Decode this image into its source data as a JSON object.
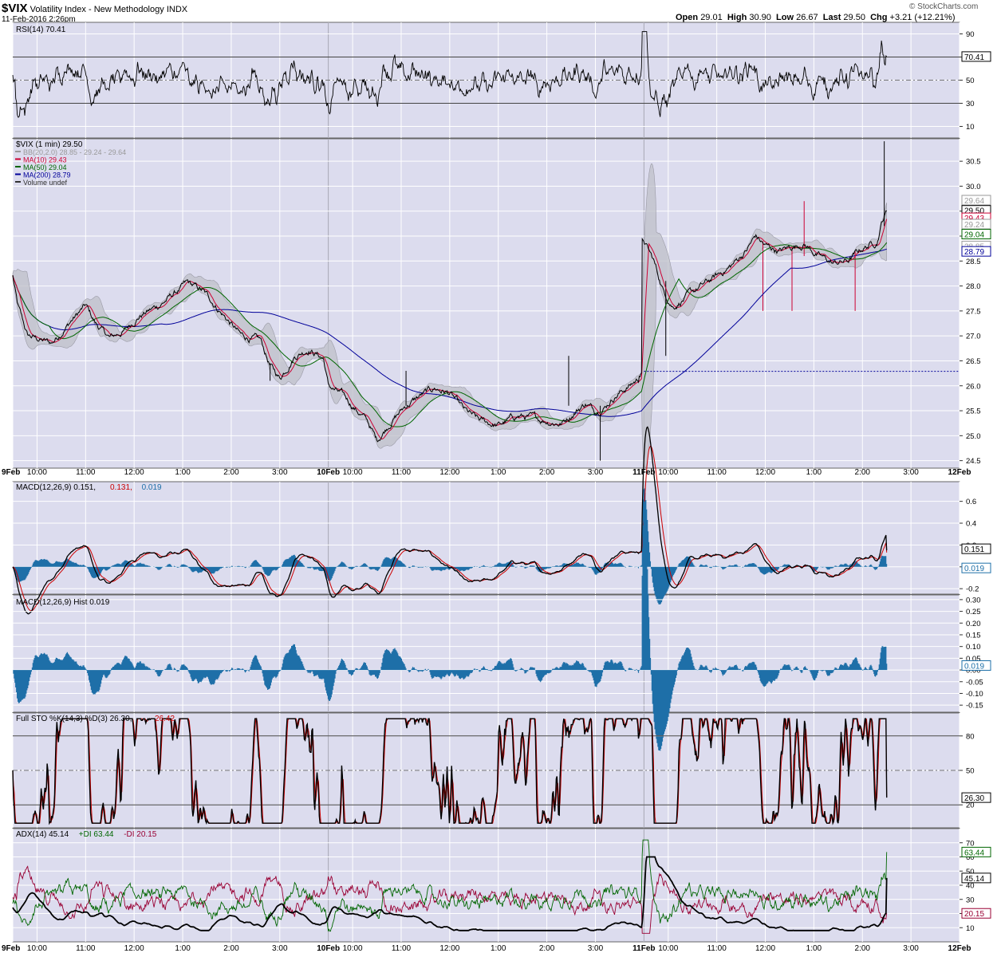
{
  "header": {
    "symbol": "$VIX",
    "name": "Volatility Index - New Methodology",
    "exchange": "INDX",
    "datetime": "11-Feb-2016 2:26pm",
    "open_label": "Open",
    "open": "29.01",
    "high_label": "High",
    "high": "30.90",
    "low_label": "Low",
    "low": "26.67",
    "last_label": "Last",
    "last": "29.50",
    "chg_label": "Chg",
    "chg": "+3.21 (+12.21%)",
    "watermark": "© StockCharts.com"
  },
  "time_axis": {
    "labels": [
      {
        "t": 0,
        "text": "9Feb",
        "bold": true
      },
      {
        "t": 0.5,
        "text": "10:00"
      },
      {
        "t": 1.5,
        "text": "11:00"
      },
      {
        "t": 2.5,
        "text": "12:00"
      },
      {
        "t": 3.5,
        "text": "1:00"
      },
      {
        "t": 4.5,
        "text": "2:00"
      },
      {
        "t": 5.5,
        "text": "3:00"
      },
      {
        "t": 6.5,
        "text": "10Feb",
        "bold": true
      },
      {
        "t": 7.0,
        "text": "10:00"
      },
      {
        "t": 8.0,
        "text": "11:00"
      },
      {
        "t": 9.0,
        "text": "12:00"
      },
      {
        "t": 10.0,
        "text": "1:00"
      },
      {
        "t": 11.0,
        "text": "2:00"
      },
      {
        "t": 12.0,
        "text": "3:00"
      },
      {
        "t": 13.0,
        "text": "11Feb",
        "bold": true
      },
      {
        "t": 13.5,
        "text": "10:00"
      },
      {
        "t": 14.5,
        "text": "11:00"
      },
      {
        "t": 15.5,
        "text": "12:00"
      },
      {
        "t": 16.5,
        "text": "1:00"
      },
      {
        "t": 17.5,
        "text": "2:00"
      },
      {
        "t": 18.5,
        "text": "3:00"
      },
      {
        "t": 19.5,
        "text": "12Feb",
        "bold": true
      }
    ],
    "day_separators": [
      6.5,
      13.0
    ]
  },
  "panels": {
    "rsi": {
      "legend": "RSI(14) 70.41",
      "ticks": [
        "90",
        "70",
        "50",
        "30",
        "10"
      ],
      "badge": "70.41"
    },
    "price": {
      "legend": [
        {
          "text": "$VIX (1 min) 29.50",
          "color": "#000000"
        },
        {
          "text": "BB(20,2.0) 28.85 - 29.24 - 29.64",
          "color": "#999999"
        },
        {
          "text": "MA(10) 29.43",
          "color": "#cc0033"
        },
        {
          "text": "MA(50) 29.04",
          "color": "#006600"
        },
        {
          "text": "MA(200) 28.79",
          "color": "#000099"
        },
        {
          "text": "Volume undef",
          "color": "#333333"
        }
      ],
      "ticks": [
        "30.5",
        "30.0",
        "29.5",
        "29.0",
        "28.5",
        "28.0",
        "27.5",
        "27.0",
        "26.5",
        "26.0",
        "25.5",
        "25.0",
        "24.5"
      ],
      "badges": [
        {
          "text": "29.64",
          "color": "#999999"
        },
        {
          "text": "29.50",
          "color": "#000000"
        },
        {
          "text": "29.43",
          "color": "#cc0033"
        },
        {
          "text": "29.24",
          "color": "#999999"
        },
        {
          "text": "29.04",
          "color": "#006600"
        },
        {
          "text": "28.85",
          "color": "#999999"
        },
        {
          "text": "28.79",
          "color": "#000099"
        }
      ]
    },
    "macd": {
      "legend": [
        {
          "text": "MACD(12,26,9) 0.151,",
          "color": "#000000"
        },
        {
          "text": "0.131,",
          "color": "#cc0000"
        },
        {
          "text": "0.019",
          "color": "#1e6fa8"
        }
      ],
      "ticks": [
        "0.6",
        "0.4",
        "0.2",
        "0.0",
        "-0.2"
      ],
      "badges": [
        "0.151",
        "0.019"
      ]
    },
    "hist": {
      "legend": "MACD(12,26,9) Hist 0.019",
      "ticks": [
        "0.30",
        "0.25",
        "0.20",
        "0.15",
        "0.10",
        "0.05",
        "0.00",
        "-0.05",
        "-0.10",
        "-0.15"
      ],
      "badge": "0.019"
    },
    "sto": {
      "legend": [
        {
          "text": "Full STO %K(14,3) %D(3) 26.30,",
          "color": "#000000"
        },
        {
          "text": "26.42",
          "color": "#cc0000"
        }
      ],
      "ticks": [
        "80",
        "50",
        "20"
      ],
      "badge": "26.30"
    },
    "adx": {
      "legend": [
        {
          "text": "ADX(14) 45.14",
          "color": "#000000"
        },
        {
          "text": "+DI 63.44",
          "color": "#006600"
        },
        {
          "text": "-DI 20.15",
          "color": "#990033"
        }
      ],
      "ticks": [
        "70",
        "60",
        "50",
        "40",
        "30",
        "20",
        "10"
      ],
      "badges": [
        {
          "text": "63.44",
          "color": "#006600"
        },
        {
          "text": "45.14",
          "color": "#000000"
        },
        {
          "text": "20.15",
          "color": "#990033"
        }
      ]
    }
  },
  "colors": {
    "panel_bg": "#dcdcee",
    "grid": "#ffffff",
    "price_line": "#000000",
    "bb_fill": "#bfc0c8",
    "ma10": "#cc0033",
    "ma50": "#006600",
    "ma200": "#000099",
    "hist": "#1e6fa8",
    "rsi_fill": "#555555"
  },
  "chart_data": {
    "type": "line",
    "title": "$VIX Volatility Index - New Methodology INDX",
    "time_unit": "hours since 9Feb 9:30 (6.5 h sessions)",
    "price_anchors": [
      [
        0,
        28.2
      ],
      [
        0.1,
        27.6
      ],
      [
        0.3,
        27.0
      ],
      [
        0.8,
        26.85
      ],
      [
        1.2,
        27.3
      ],
      [
        1.5,
        27.6
      ],
      [
        1.7,
        27.25
      ],
      [
        2.0,
        26.95
      ],
      [
        2.3,
        27.1
      ],
      [
        2.6,
        27.4
      ],
      [
        3.0,
        27.6
      ],
      [
        3.4,
        27.9
      ],
      [
        3.6,
        28.05
      ],
      [
        3.9,
        27.9
      ],
      [
        4.1,
        27.7
      ],
      [
        4.4,
        27.35
      ],
      [
        4.7,
        27.0
      ],
      [
        5.1,
        26.9
      ],
      [
        5.3,
        26.4
      ],
      [
        5.5,
        26.15
      ],
      [
        5.8,
        26.6
      ],
      [
        6.1,
        26.75
      ],
      [
        6.4,
        26.55
      ],
      [
        6.5,
        26.0
      ],
      [
        6.8,
        25.8
      ],
      [
        7.3,
        25.3
      ],
      [
        7.5,
        24.9
      ],
      [
        7.8,
        25.3
      ],
      [
        8.1,
        25.6
      ],
      [
        8.4,
        25.8
      ],
      [
        8.7,
        25.95
      ],
      [
        9.0,
        25.85
      ],
      [
        9.3,
        25.5
      ],
      [
        9.6,
        25.3
      ],
      [
        10.0,
        25.2
      ],
      [
        10.4,
        25.4
      ],
      [
        10.7,
        25.35
      ],
      [
        11.0,
        25.3
      ],
      [
        11.3,
        25.25
      ],
      [
        11.6,
        25.5
      ],
      [
        11.8,
        25.65
      ],
      [
        12.0,
        25.5
      ],
      [
        12.2,
        25.6
      ],
      [
        12.4,
        25.8
      ],
      [
        12.7,
        26.0
      ],
      [
        12.9,
        26.15
      ],
      [
        12.95,
        26.25
      ],
      [
        13.0,
        28.9
      ],
      [
        13.2,
        28.5
      ],
      [
        13.4,
        27.9
      ],
      [
        13.6,
        27.6
      ],
      [
        13.9,
        27.8
      ],
      [
        14.2,
        28.0
      ],
      [
        14.5,
        28.2
      ],
      [
        14.8,
        28.4
      ],
      [
        15.1,
        28.7
      ],
      [
        15.3,
        29.0
      ],
      [
        15.5,
        28.8
      ],
      [
        15.8,
        28.7
      ],
      [
        16.1,
        28.8
      ],
      [
        16.3,
        28.85
      ],
      [
        16.6,
        28.6
      ],
      [
        16.9,
        28.45
      ],
      [
        17.2,
        28.5
      ],
      [
        17.5,
        28.75
      ],
      [
        17.8,
        28.9
      ],
      [
        17.9,
        29.3
      ],
      [
        18.0,
        29.5
      ]
    ],
    "rsi_last": 70.41,
    "macd_last": {
      "macd": 0.151,
      "signal": 0.131,
      "hist": 0.019
    },
    "sto_last": {
      "k": 26.3,
      "d": 26.42
    },
    "adx_last": {
      "adx": 45.14,
      "plus_di": 63.44,
      "minus_di": 20.15
    },
    "ranges": {
      "price": [
        24.35,
        30.95
      ],
      "rsi": [
        0,
        100
      ],
      "macd": [
        -0.25,
        0.78
      ],
      "hist": [
        -0.18,
        0.32
      ],
      "sto": [
        0,
        100
      ],
      "adx": [
        0,
        80
      ],
      "time": [
        0,
        19.5
      ]
    }
  }
}
